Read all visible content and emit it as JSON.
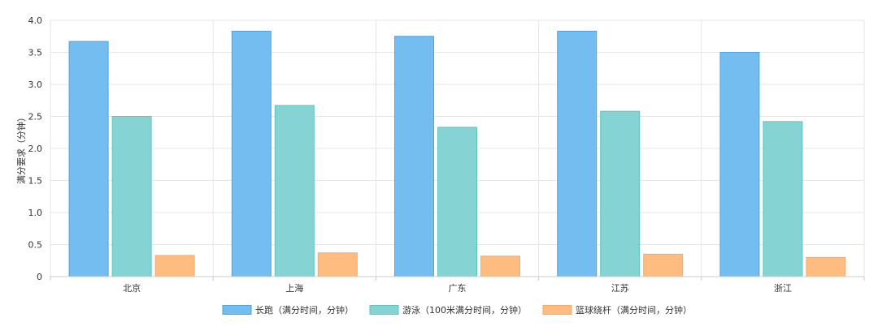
{
  "chart_data": {
    "type": "bar",
    "categories": [
      "北京",
      "上海",
      "广东",
      "江苏",
      "浙江"
    ],
    "series": [
      {
        "name": "长跑（满分时间，分钟）",
        "values": [
          3.67,
          3.83,
          3.75,
          3.83,
          3.5
        ],
        "color": "#74bdf0",
        "border": "#4aa5e8"
      },
      {
        "name": "游泳（100米满分时间，分钟）",
        "values": [
          2.5,
          2.67,
          2.33,
          2.58,
          2.42
        ],
        "color": "#85d3d2",
        "border": "#5cc4c2"
      },
      {
        "name": "篮球绕杆（满分时间，分钟）",
        "values": [
          0.33,
          0.37,
          0.32,
          0.35,
          0.3
        ],
        "color": "#ffbc80",
        "border": "#ffa75a"
      }
    ],
    "yticks": [
      "0",
      "0.5",
      "1.0",
      "1.5",
      "2.0",
      "2.5",
      "3.0",
      "3.5",
      "4.0"
    ],
    "ylim": [
      0,
      4.0
    ],
    "ylabel": "满分要求（分钟）",
    "xlabel": "",
    "grid": true,
    "legend": "bottom-center"
  }
}
